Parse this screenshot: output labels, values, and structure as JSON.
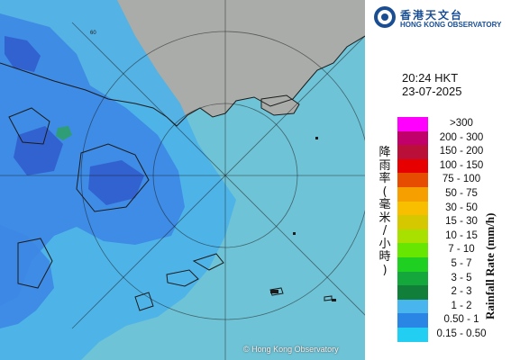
{
  "map": {
    "copyright": "© Hong Kong Observatory",
    "range_ring_label": "60",
    "colors": {
      "sea": "#6fc3d6",
      "land": "#a9aca8",
      "rain_light": "#4ab3ea",
      "rain_moderate": "#3d87e4",
      "rain_heavy": "#2f58c9",
      "rain_embedded": "#2f9e76",
      "coastline": "#1b1b1b"
    }
  },
  "logo": {
    "name_cn": "香港天文台",
    "name_en": "HONG KONG OBSERVATORY",
    "icon": "observatory-logo-icon"
  },
  "timestamp": {
    "time": "20:24 HKT",
    "date": "23-07-2025"
  },
  "legend": {
    "title_en": "Rainfall Rate (mm/h)",
    "title_cn": [
      "降",
      "雨",
      "率",
      "(",
      "毫",
      "米",
      "/",
      "小",
      "時",
      ")"
    ],
    "items": [
      {
        "label": ">300",
        "color": "#ff00ff"
      },
      {
        "label": "200 - 300",
        "color": "#c2006b"
      },
      {
        "label": "150 - 200",
        "color": "#ba0f38"
      },
      {
        "label": "100 - 150",
        "color": "#e60000"
      },
      {
        "label": "75 - 100",
        "color": "#e64d00"
      },
      {
        "label": "50 - 75",
        "color": "#f59f00"
      },
      {
        "label": "30 - 50",
        "color": "#f7bf00"
      },
      {
        "label": "15 - 30",
        "color": "#d6c800"
      },
      {
        "label": "10 - 15",
        "color": "#a8e000"
      },
      {
        "label": "7 - 10",
        "color": "#66e600"
      },
      {
        "label": "5 - 7",
        "color": "#1fcf22"
      },
      {
        "label": "3 - 5",
        "color": "#14a83c"
      },
      {
        "label": "2 - 3",
        "color": "#117f3a"
      },
      {
        "label": "1 - 2",
        "color": "#48b5ee"
      },
      {
        "label": "0.50 - 1",
        "color": "#2a86e4"
      },
      {
        "label": "0.15 - 0.50",
        "color": "#22cff3"
      }
    ]
  }
}
